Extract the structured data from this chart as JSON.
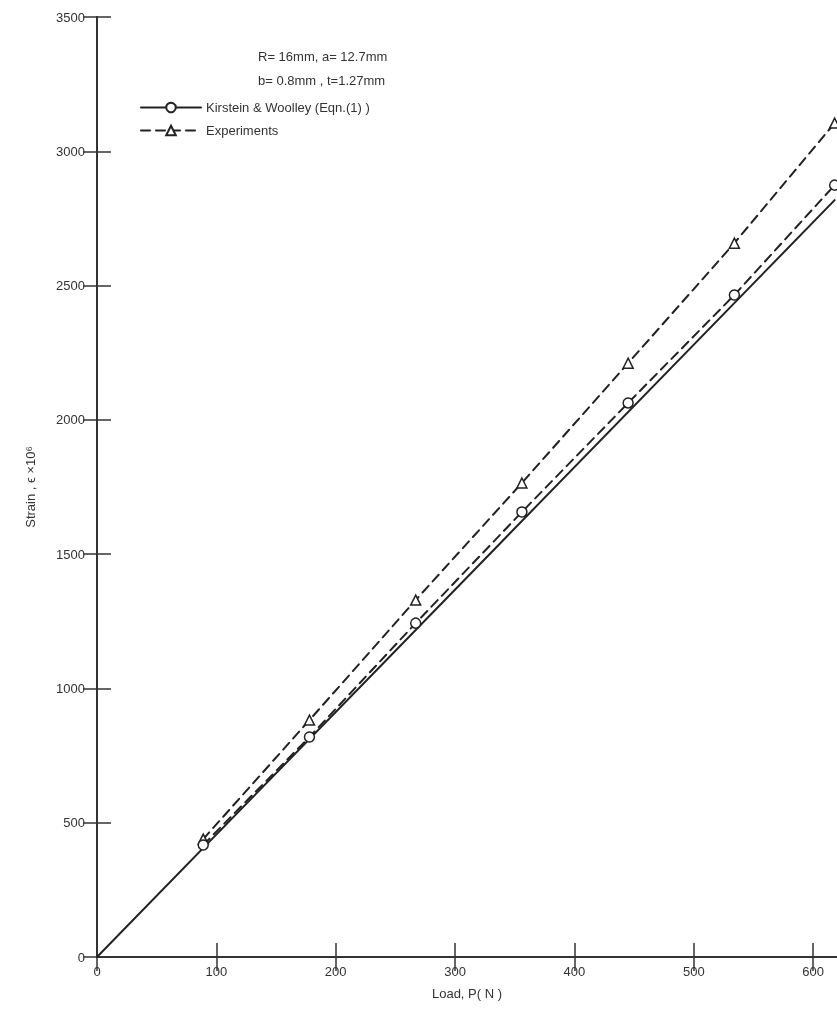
{
  "chart_data": {
    "type": "line",
    "xlabel": "Load, P( N )",
    "ylabel": "Strain , ϵ ×10⁶",
    "annotations": [
      "R= 16mm, a= 12.7mm",
      "b= 0.8mm , t=1.27mm"
    ],
    "xlim": [
      0,
      620
    ],
    "xticks": [
      0,
      100,
      200,
      300,
      400,
      500,
      600
    ],
    "ylim": [
      0,
      3500
    ],
    "yticks": [
      0,
      500,
      1000,
      1500,
      2000,
      2500,
      3000,
      3500
    ],
    "grid": false,
    "legend": "top left",
    "series": [
      {
        "name": "Kirstein & Woolley (Eqn.(1) )",
        "color": "#222222",
        "line_style": "solid",
        "marker": "none",
        "x": [
          0,
          618
        ],
        "values": [
          0,
          2818
        ]
      },
      {
        "name": "Experiments",
        "color": "#222222",
        "line_style": "dashed",
        "marker": "triangle",
        "x": [
          89,
          178,
          267,
          356,
          445,
          534,
          618
        ],
        "values": [
          439,
          882,
          1329,
          1765,
          2211,
          2658,
          3105
        ]
      },
      {
        "color": "#222222",
        "line_style": "dashed",
        "marker": "circle",
        "x": [
          89,
          178,
          267,
          356,
          445,
          534,
          618
        ],
        "values": [
          417,
          819,
          1243,
          1657,
          2063,
          2465,
          2874
        ]
      }
    ]
  }
}
